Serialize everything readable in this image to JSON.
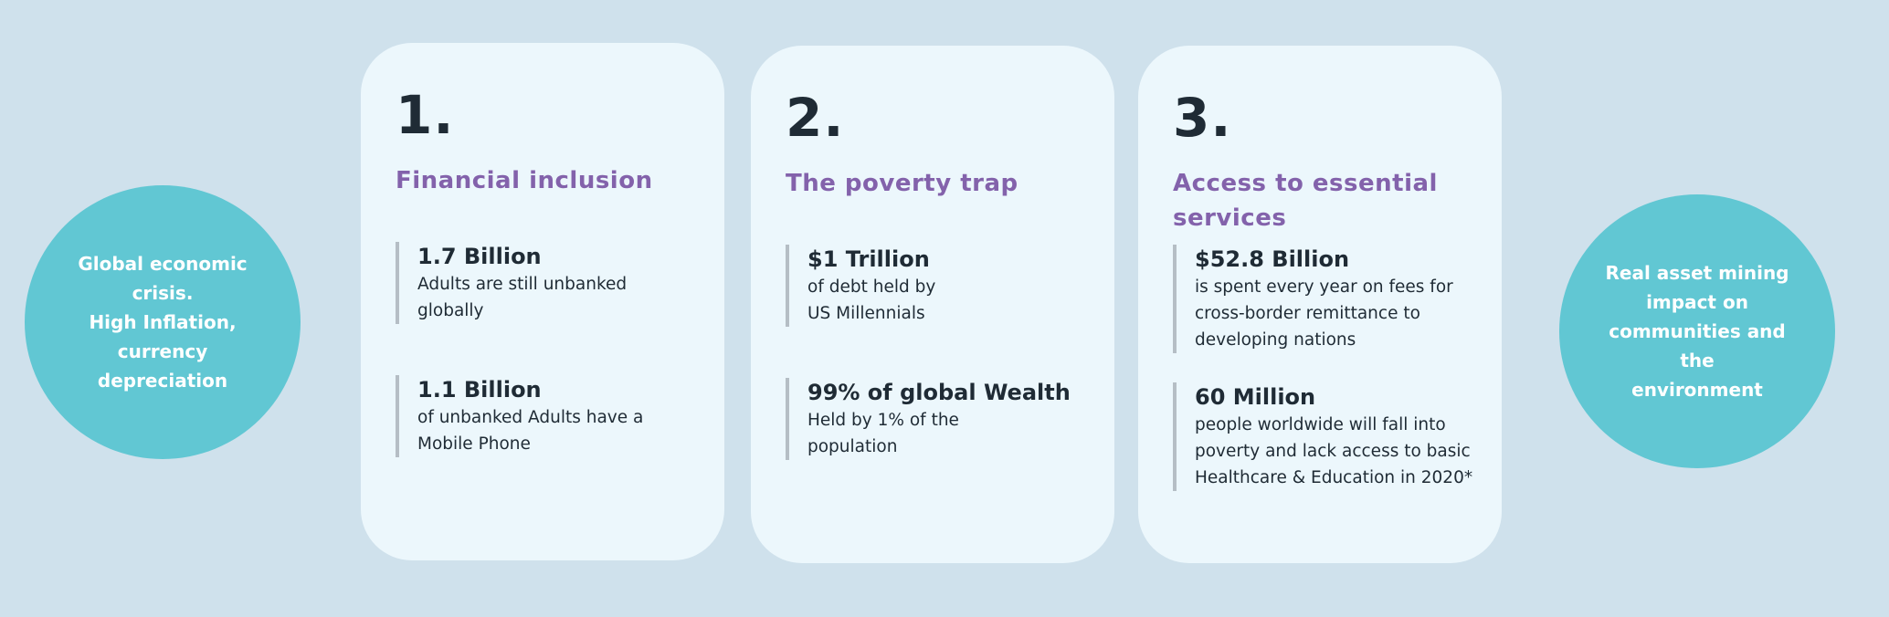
{
  "left_circle": {
    "text": "Global economic\ncrisis.\nHigh Inflation,\ncurrency\ndepreciation"
  },
  "right_circle": {
    "text": "Real asset  mining\nimpact on\ncommunities and the\nenvironment"
  },
  "cards": [
    {
      "number": "1.",
      "title": "Financial inclusion",
      "stats": [
        {
          "head": "1.7 Billion",
          "body": "Adults are still unbanked globally"
        },
        {
          "head": "1.1 Billion",
          "body": "of unbanked Adults have a Mobile Phone"
        }
      ]
    },
    {
      "number": "2.",
      "title": "The poverty trap",
      "stats": [
        {
          "head": "$1 Trillion",
          "body": "of debt held by US Millennials"
        },
        {
          "head": "99% of global Wealth",
          "body": "Held by 1% of the population"
        }
      ]
    },
    {
      "number": "3.",
      "title": "Access to essential services",
      "stats": [
        {
          "head": "$52.8 Billion",
          "body": "is spent every year on fees for cross-border remittance to developing nations"
        },
        {
          "head": "60 Million",
          "body": "people worldwide will fall into poverty and lack access to basic Healthcare & Education in 2020*"
        }
      ]
    }
  ],
  "colors": {
    "background": "#cfe1ec",
    "card": "#ecf7fc",
    "circle": "#61c7d3",
    "title": "#8362ab",
    "text": "#1f2b35"
  }
}
